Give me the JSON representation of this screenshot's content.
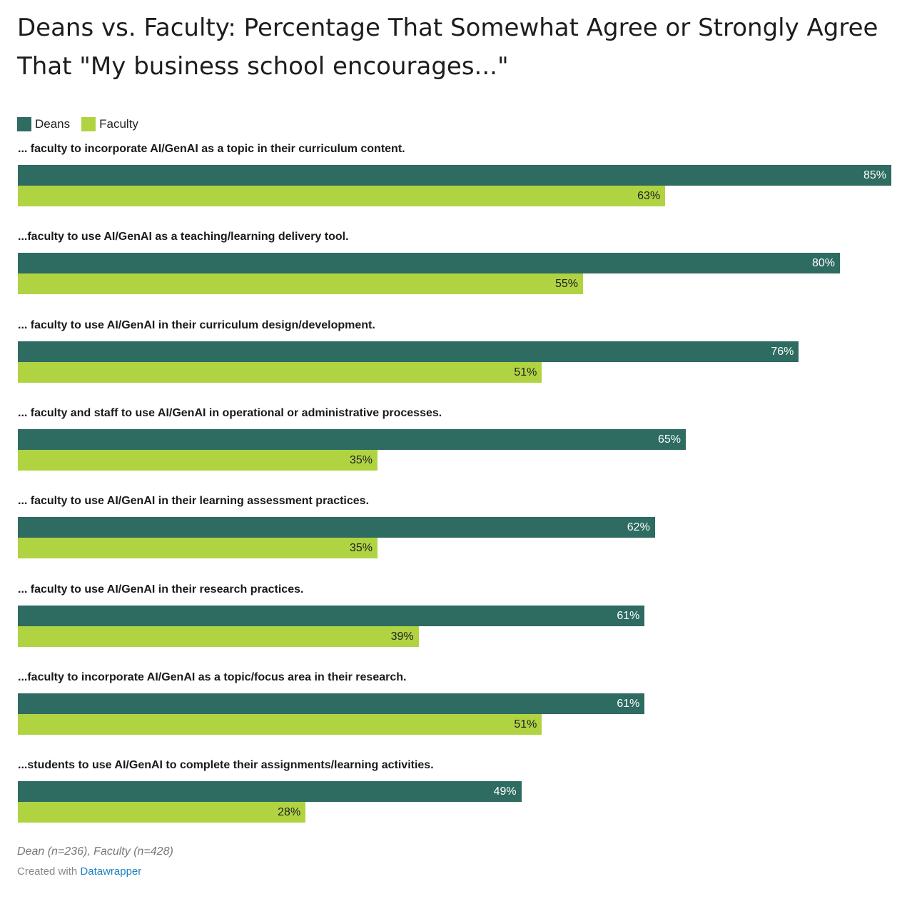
{
  "chart_data": {
    "type": "bar",
    "orientation": "horizontal",
    "title": "Deans vs. Faculty: Percentage That Somewhat Agree or Strongly Agree That \"My business school encourages...\"",
    "xlabel": "",
    "ylabel": "",
    "xlim": [
      0,
      100
    ],
    "grid": false,
    "legend_position": "top-left",
    "categories": [
      "... faculty to incorporate AI/GenAI as a topic in their curriculum content.",
      "...faculty to use AI/GenAI as a teaching/learning delivery tool.",
      "... faculty to use AI/GenAI in their curriculum design/development.",
      "... faculty and staff to use AI/GenAI in operational or administrative processes.",
      "... faculty to use AI/GenAI in their learning assessment practices.",
      "... faculty to use AI/GenAI in their research practices.",
      "...faculty to incorporate AI/GenAI as a topic/focus area in their research.",
      "...students to use AI/GenAI to complete their assignments/learning activities."
    ],
    "series": [
      {
        "name": "Deans",
        "color": "#2e6b60",
        "label_color": "#ffffff",
        "values": [
          85,
          80,
          76,
          65,
          62,
          61,
          61,
          49
        ]
      },
      {
        "name": "Faculty",
        "color": "#b0d342",
        "label_color": "#222222",
        "values": [
          63,
          55,
          51,
          35,
          35,
          39,
          51,
          28
        ]
      }
    ],
    "value_suffix": "%"
  },
  "footnote": "Dean (n=236), Faculty (n=428)",
  "credit": {
    "prefix": "Created with",
    "link_text": "Datawrapper"
  }
}
